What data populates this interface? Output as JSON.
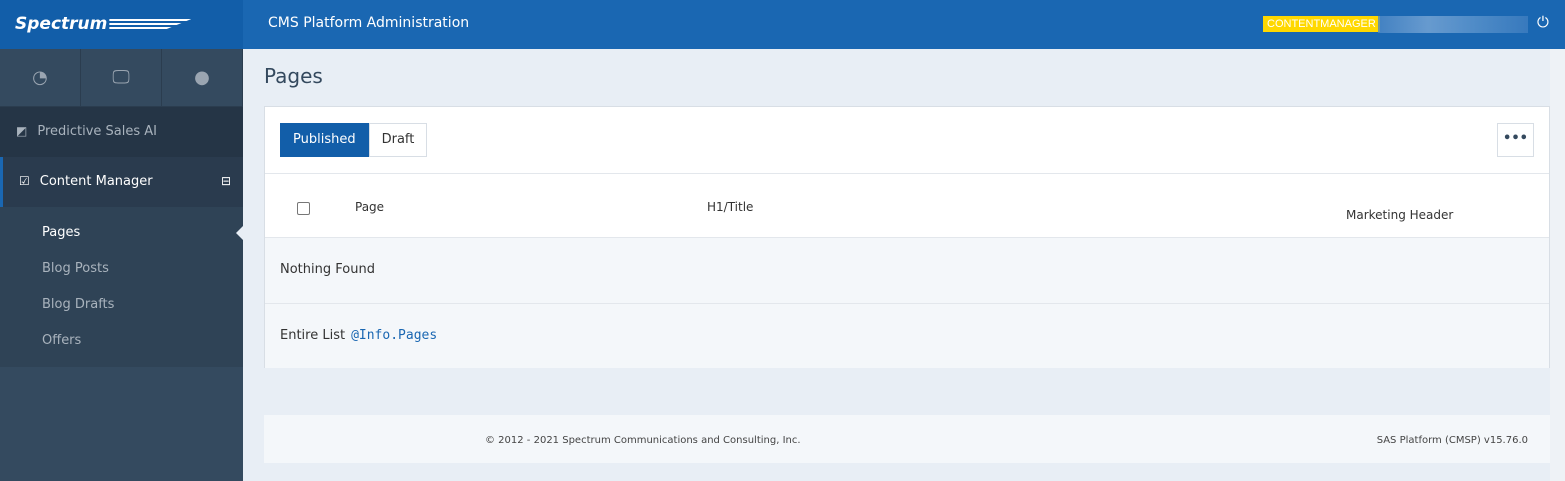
{
  "header": {
    "logo": "Spectrum",
    "title": "CMS Platform Administration",
    "role_badge": "CONTENTMANAGER",
    "badge_color": "#ffd800"
  },
  "sidebar": {
    "icons": [
      "dashboard-icon",
      "desktop-icon",
      "comment-icon"
    ],
    "items": [
      {
        "label": "Predictive Sales AI"
      },
      {
        "label": "Content Manager"
      }
    ],
    "subitems": [
      {
        "label": "Pages"
      },
      {
        "label": "Blog Posts"
      },
      {
        "label": "Blog Drafts"
      },
      {
        "label": "Offers"
      }
    ]
  },
  "main": {
    "title": "Pages",
    "tabs": [
      {
        "label": "Published"
      },
      {
        "label": "Draft"
      }
    ],
    "more_label": "•••",
    "columns": [
      "Page",
      "H1/Title",
      "Marketing Header"
    ],
    "empty": "Nothing Found",
    "entire_list_label": "Entire List",
    "entire_list_code": "@Info.Pages"
  },
  "footer": {
    "copyright": "© 2012 - 2021 Spectrum Communications and Consulting, Inc.",
    "version": "SAS Platform (CMSP) v15.76.0"
  }
}
